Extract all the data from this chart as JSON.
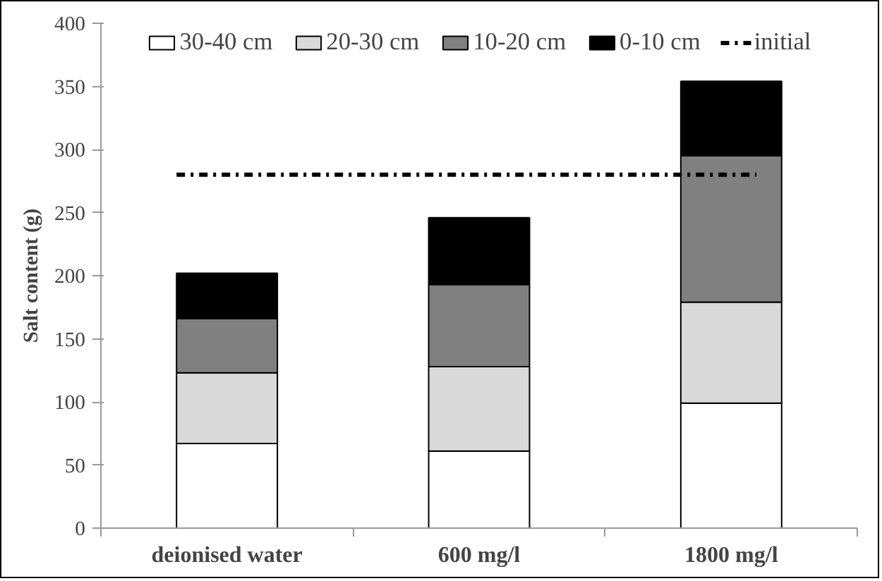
{
  "chart_data": {
    "type": "bar",
    "stacked": true,
    "ylabel": "Salt content (g)",
    "categories": [
      "deionised water",
      "600 mg/l",
      "1800 mg/l"
    ],
    "series": [
      {
        "name": "30-40 cm",
        "color": "#ffffff",
        "values": [
          67,
          61,
          99
        ]
      },
      {
        "name": "20-30 cm",
        "color": "#d9d9d9",
        "values": [
          56,
          67,
          80
        ]
      },
      {
        "name": "10-20 cm",
        "color": "#808080",
        "values": [
          43,
          65,
          116
        ]
      },
      {
        "name": "0-10 cm",
        "color": "#000000",
        "values": [
          36,
          53,
          59
        ]
      }
    ],
    "ref_lines": [
      {
        "axis": "y",
        "value": 280,
        "label": "initial",
        "color": "#000000",
        "line_style": "dashdot"
      }
    ],
    "ylim": [
      0,
      400
    ],
    "yticks": [
      0,
      50,
      100,
      150,
      200,
      250,
      300,
      350,
      400
    ],
    "grid": false,
    "legend": "top"
  }
}
